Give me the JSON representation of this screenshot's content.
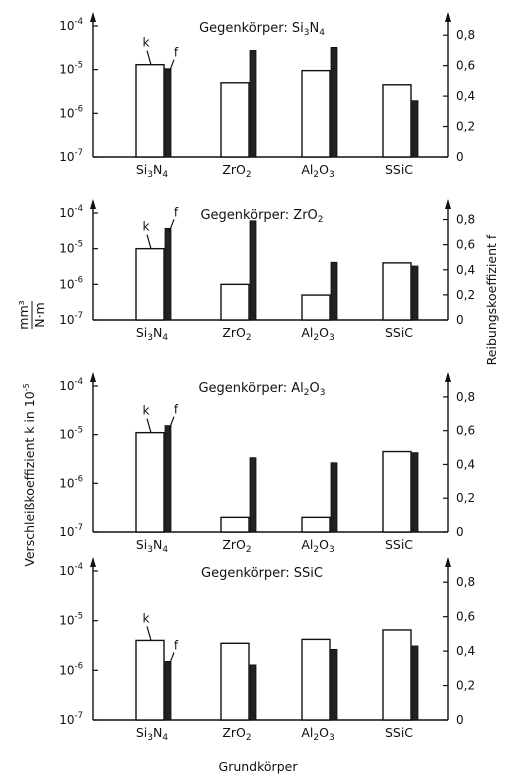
{
  "texts": {
    "ylabel_left_main": "Verschleißkoeffizient k in 10",
    "ylabel_left_exp": "-5",
    "ylabel_left_unit_num": "mm³",
    "ylabel_left_unit_den": "N·m",
    "ylabel_right": "Reibungskoeffizient f",
    "xlabel": "Grundkörper",
    "series_k_label": "k",
    "series_f_label": "f"
  },
  "colors": {
    "k_fill": "#ffffff",
    "f_fill": "#222222",
    "stroke": "#111111"
  },
  "chart_data": {
    "type": "bar",
    "panels": [
      {
        "title_prefix": "Gegenkörper:",
        "counterpart": "Si₃N₄",
        "categories": [
          "Si₃N₄",
          "ZrO₂",
          "Al₂O₃",
          "SSiC"
        ],
        "series": [
          {
            "name": "k",
            "axis": "left",
            "scale": "log",
            "values": [
              1.3e-05,
              5e-06,
              9.5e-06,
              4.5e-06
            ]
          },
          {
            "name": "f",
            "axis": "right",
            "scale": "linear",
            "values": [
              0.58,
              0.7,
              0.72,
              0.37
            ]
          }
        ],
        "left_ticks": [
          "10⁻⁴",
          "10⁻⁵",
          "10⁻⁶",
          "10⁻⁷"
        ],
        "right_ticks": [
          "0,8",
          "0,6",
          "0,4",
          "0,2",
          "0"
        ]
      },
      {
        "title_prefix": "Gegenkörper:",
        "counterpart": "ZrO₂",
        "categories": [
          "Si₃N₄",
          "ZrO₂",
          "Al₂O₃",
          "SSiC"
        ],
        "series": [
          {
            "name": "k",
            "axis": "left",
            "scale": "log",
            "values": [
              1e-05,
              1e-06,
              5e-07,
              4e-06
            ]
          },
          {
            "name": "f",
            "axis": "right",
            "scale": "linear",
            "values": [
              0.73,
              0.79,
              0.46,
              0.43
            ]
          }
        ],
        "left_ticks": [
          "10⁻⁴",
          "10⁻⁵",
          "10⁻⁶",
          "10⁻⁷"
        ],
        "right_ticks": [
          "0,8",
          "0,6",
          "0,4",
          "0,2",
          "0"
        ]
      },
      {
        "title_prefix": "Gegenkörper:",
        "counterpart": "Al₂O₃",
        "categories": [
          "Si₃N₄",
          "ZrO₂",
          "Al₂O₃",
          "SSiC"
        ],
        "series": [
          {
            "name": "k",
            "axis": "left",
            "scale": "log",
            "values": [
              1.1e-05,
              2e-07,
              2e-07,
              4.5e-06
            ]
          },
          {
            "name": "f",
            "axis": "right",
            "scale": "linear",
            "values": [
              0.63,
              0.44,
              0.41,
              0.47
            ]
          }
        ],
        "left_ticks": [
          "10⁻⁴",
          "10⁻⁵",
          "10⁻⁶",
          "10⁻⁷"
        ],
        "right_ticks": [
          "0,8",
          "0,6",
          "0,4",
          "0,2",
          "0"
        ]
      },
      {
        "title_prefix": "Gegenkörper:",
        "counterpart": "SSiC",
        "categories": [
          "Si₃N₄",
          "ZrO₂",
          "Al₂O₃",
          "SSiC"
        ],
        "series": [
          {
            "name": "k",
            "axis": "left",
            "scale": "log",
            "values": [
              4e-06,
              3.5e-06,
              4.2e-06,
              6.5e-06
            ]
          },
          {
            "name": "f",
            "axis": "right",
            "scale": "linear",
            "values": [
              0.34,
              0.32,
              0.41,
              0.43
            ]
          }
        ],
        "left_ticks": [
          "10⁻⁴",
          "10⁻⁵",
          "10⁻⁶",
          "10⁻⁷"
        ],
        "right_ticks": [
          "0,8",
          "0,6",
          "0,4",
          "0,2",
          "0"
        ]
      }
    ],
    "left_axis": {
      "scale": "log",
      "ylim": [
        1e-07,
        0.0001
      ]
    },
    "right_axis": {
      "scale": "linear",
      "ylim": [
        0,
        0.9
      ]
    },
    "grid": false,
    "legend": "inline labels k and f on first bar pair"
  }
}
